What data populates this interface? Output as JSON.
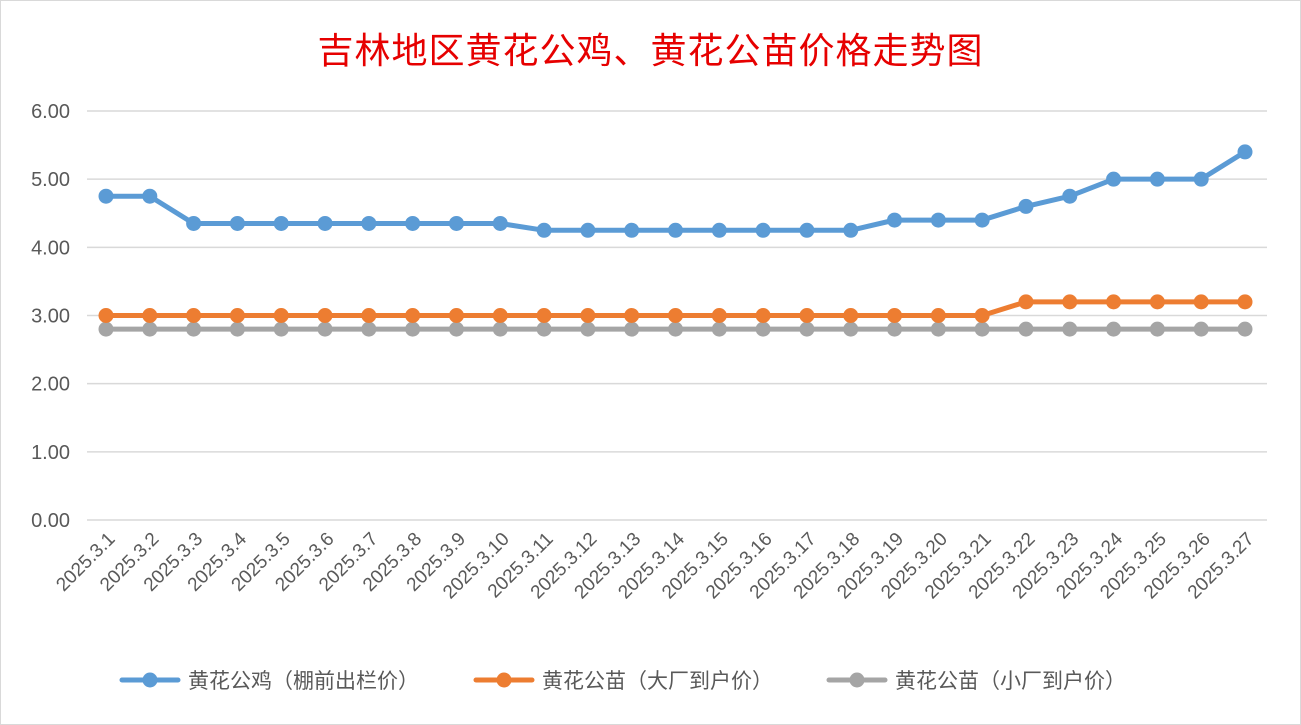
{
  "chart_data": {
    "type": "line",
    "title": "吉林地区黄花公鸡、黄花公苗价格走势图",
    "xlabel": "",
    "ylabel": "",
    "ylim": [
      0,
      6
    ],
    "yticks": [
      "0.00",
      "1.00",
      "2.00",
      "3.00",
      "4.00",
      "5.00",
      "6.00"
    ],
    "grid": true,
    "legend_position": "bottom",
    "categories": [
      "2025.3.1",
      "2025.3.2",
      "2025.3.3",
      "2025.3.4",
      "2025.3.5",
      "2025.3.6",
      "2025.3.7",
      "2025.3.8",
      "2025.3.9",
      "2025.3.10",
      "2025.3.11",
      "2025.3.12",
      "2025.3.13",
      "2025.3.14",
      "2025.3.15",
      "2025.3.16",
      "2025.3.17",
      "2025.3.18",
      "2025.3.19",
      "2025.3.20",
      "2025.3.21",
      "2025.3.22",
      "2025.3.23",
      "2025.3.24",
      "2025.3.25",
      "2025.3.26",
      "2025.3.27"
    ],
    "series": [
      {
        "name": "黄花公鸡（棚前出栏价）",
        "color": "#5b9bd5",
        "values": [
          4.75,
          4.75,
          4.35,
          4.35,
          4.35,
          4.35,
          4.35,
          4.35,
          4.35,
          4.35,
          4.25,
          4.25,
          4.25,
          4.25,
          4.25,
          4.25,
          4.25,
          4.25,
          4.4,
          4.4,
          4.4,
          4.6,
          4.75,
          5.0,
          5.0,
          5.0,
          5.4
        ]
      },
      {
        "name": "黄花公苗（大厂到户价）",
        "color": "#ed7d31",
        "values": [
          3.0,
          3.0,
          3.0,
          3.0,
          3.0,
          3.0,
          3.0,
          3.0,
          3.0,
          3.0,
          3.0,
          3.0,
          3.0,
          3.0,
          3.0,
          3.0,
          3.0,
          3.0,
          3.0,
          3.0,
          3.0,
          3.2,
          3.2,
          3.2,
          3.2,
          3.2,
          3.2
        ]
      },
      {
        "name": "黄花公苗（小厂到户价）",
        "color": "#a5a5a5",
        "values": [
          2.8,
          2.8,
          2.8,
          2.8,
          2.8,
          2.8,
          2.8,
          2.8,
          2.8,
          2.8,
          2.8,
          2.8,
          2.8,
          2.8,
          2.8,
          2.8,
          2.8,
          2.8,
          2.8,
          2.8,
          2.8,
          2.8,
          2.8,
          2.8,
          2.8,
          2.8,
          2.8
        ]
      }
    ]
  }
}
